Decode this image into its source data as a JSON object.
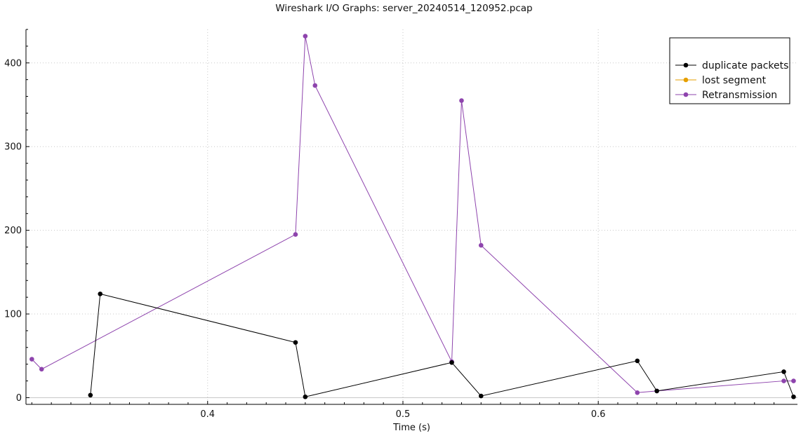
{
  "window": {
    "title": "Wireshark I/O Graphs: server_20240514_120952.pcap"
  },
  "chart_data": {
    "type": "line",
    "title": "Wireshark I/O Graphs: server_20240514_120952.pcap",
    "xlabel": "Time (s)",
    "ylabel": "",
    "xlim": [
      0.307,
      0.702
    ],
    "ylim": [
      -8,
      440
    ],
    "x_ticks": [
      0.4,
      0.5,
      0.6
    ],
    "x_tick_labels": [
      "0.4",
      "0.5",
      "0.6"
    ],
    "y_ticks": [
      0,
      100,
      200,
      300,
      400
    ],
    "y_tick_labels": [
      "0",
      "100",
      "200",
      "300",
      "400"
    ],
    "grid": true,
    "legend_position": "top-right",
    "series": [
      {
        "name": "duplicate packets",
        "color": "#000000",
        "x": [
          0.34,
          0.345,
          0.445,
          0.45,
          0.525,
          0.54,
          0.62,
          0.63,
          0.695,
          0.7
        ],
        "y": [
          3,
          124,
          66,
          1,
          42,
          2,
          44,
          8,
          31,
          1
        ]
      },
      {
        "name": "lost segment",
        "color": "#e69f00",
        "x": [],
        "y": []
      },
      {
        "name": "Retransmission",
        "color": "#8e44ad",
        "x": [
          0.31,
          0.315,
          0.445,
          0.45,
          0.455,
          0.525,
          0.53,
          0.54,
          0.62,
          0.63,
          0.695,
          0.7
        ],
        "y": [
          46,
          34,
          195,
          432,
          373,
          43,
          355,
          182,
          6,
          8,
          20,
          20
        ]
      }
    ]
  }
}
